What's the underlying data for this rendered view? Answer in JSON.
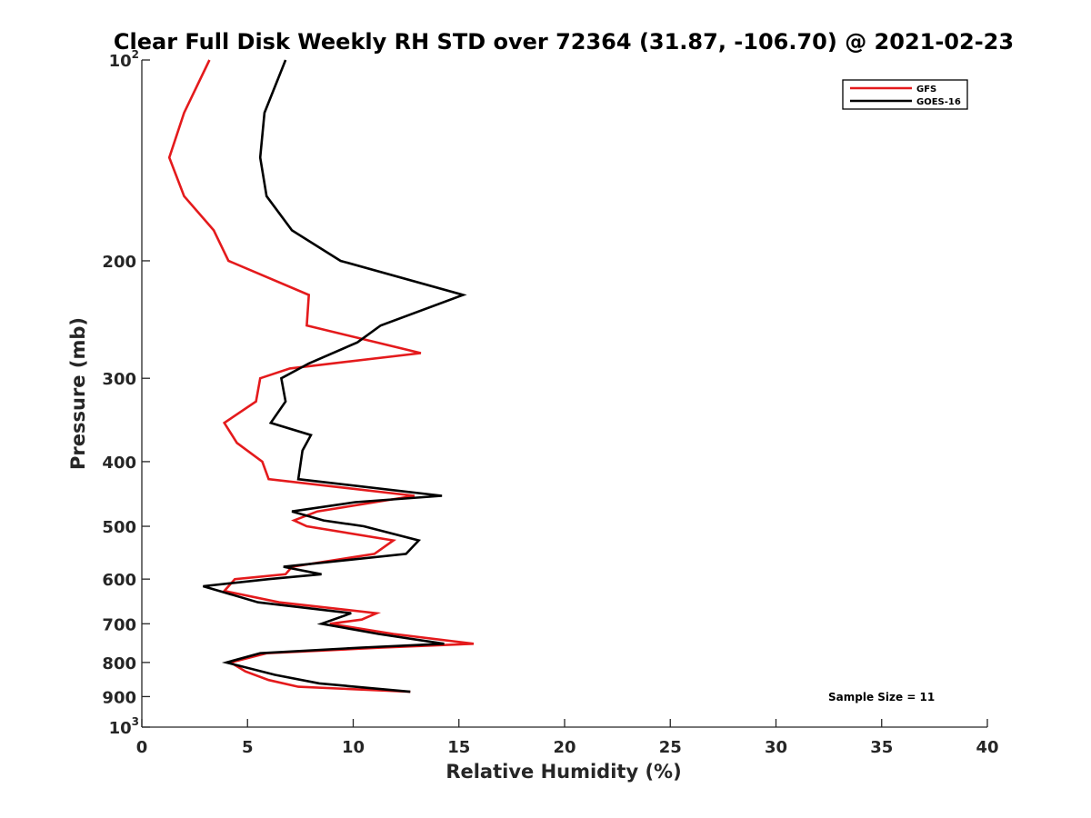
{
  "chart_data": {
    "type": "line",
    "title": "Clear Full Disk Weekly RH STD over 72364 (31.87, -106.70) @ 2021-02-23",
    "xlabel": "Relative Humidity (%)",
    "ylabel": "Pressure (mb)",
    "xlim": [
      0,
      40
    ],
    "ylim": [
      100,
      1000
    ],
    "y_scale": "log",
    "y_reversed": true,
    "grid": false,
    "legend_position": "top-right",
    "x_ticks": [
      "0",
      "5",
      "10",
      "15",
      "20",
      "25",
      "30",
      "35",
      "40"
    ],
    "y_ticks": [
      {
        "value": 100,
        "base": "10",
        "exp": "2"
      },
      {
        "value": 200,
        "label": "200"
      },
      {
        "value": 300,
        "label": "300"
      },
      {
        "value": 400,
        "label": "400"
      },
      {
        "value": 500,
        "label": "500"
      },
      {
        "value": 600,
        "label": "600"
      },
      {
        "value": 700,
        "label": "700"
      },
      {
        "value": 800,
        "label": "800"
      },
      {
        "value": 900,
        "label": "900"
      },
      {
        "value": 1000,
        "base": "10",
        "exp": "3"
      }
    ],
    "annotation": "Sample Size = 11",
    "series": [
      {
        "name": "GFS",
        "color": "#e41a1c",
        "points": [
          [
            3.2,
            100
          ],
          [
            2.0,
            120
          ],
          [
            1.3,
            140
          ],
          [
            2.0,
            160
          ],
          [
            3.4,
            180
          ],
          [
            4.1,
            200
          ],
          [
            7.9,
            225
          ],
          [
            7.8,
            250
          ],
          [
            13.2,
            275
          ],
          [
            7.0,
            290
          ],
          [
            5.6,
            300
          ],
          [
            5.4,
            325
          ],
          [
            3.9,
            350
          ],
          [
            4.5,
            375
          ],
          [
            5.7,
            400
          ],
          [
            6.0,
            425
          ],
          [
            12.9,
            450
          ],
          [
            8.3,
            475
          ],
          [
            7.2,
            490
          ],
          [
            7.8,
            500
          ],
          [
            11.9,
            525
          ],
          [
            11.0,
            550
          ],
          [
            7.1,
            575
          ],
          [
            6.8,
            590
          ],
          [
            4.4,
            600
          ],
          [
            3.9,
            625
          ],
          [
            6.5,
            650
          ],
          [
            11.1,
            675
          ],
          [
            10.4,
            690
          ],
          [
            8.9,
            700
          ],
          [
            11.9,
            725
          ],
          [
            15.7,
            750
          ],
          [
            11.4,
            760
          ],
          [
            5.9,
            775
          ],
          [
            4.2,
            800
          ],
          [
            4.9,
            825
          ],
          [
            6.0,
            850
          ],
          [
            7.4,
            870
          ],
          [
            12.7,
            885
          ]
        ]
      },
      {
        "name": "GOES-16",
        "color": "#000000",
        "points": [
          [
            6.8,
            100
          ],
          [
            5.8,
            120
          ],
          [
            5.6,
            140
          ],
          [
            5.9,
            160
          ],
          [
            7.1,
            180
          ],
          [
            9.4,
            200
          ],
          [
            15.2,
            225
          ],
          [
            11.3,
            250
          ],
          [
            10.2,
            265
          ],
          [
            7.9,
            285
          ],
          [
            6.6,
            300
          ],
          [
            6.8,
            325
          ],
          [
            6.1,
            350
          ],
          [
            8.0,
            365
          ],
          [
            7.6,
            385
          ],
          [
            7.4,
            425
          ],
          [
            14.2,
            450
          ],
          [
            10.1,
            460
          ],
          [
            7.1,
            475
          ],
          [
            8.6,
            490
          ],
          [
            10.5,
            500
          ],
          [
            13.1,
            525
          ],
          [
            12.5,
            550
          ],
          [
            6.7,
            575
          ],
          [
            8.5,
            590
          ],
          [
            6.0,
            600
          ],
          [
            2.9,
            615
          ],
          [
            5.5,
            650
          ],
          [
            9.9,
            675
          ],
          [
            8.5,
            700
          ],
          [
            11.2,
            725
          ],
          [
            14.3,
            750
          ],
          [
            10.4,
            760
          ],
          [
            5.6,
            775
          ],
          [
            4.0,
            800
          ],
          [
            6.3,
            835
          ],
          [
            8.4,
            860
          ],
          [
            12.7,
            885
          ]
        ]
      }
    ]
  }
}
